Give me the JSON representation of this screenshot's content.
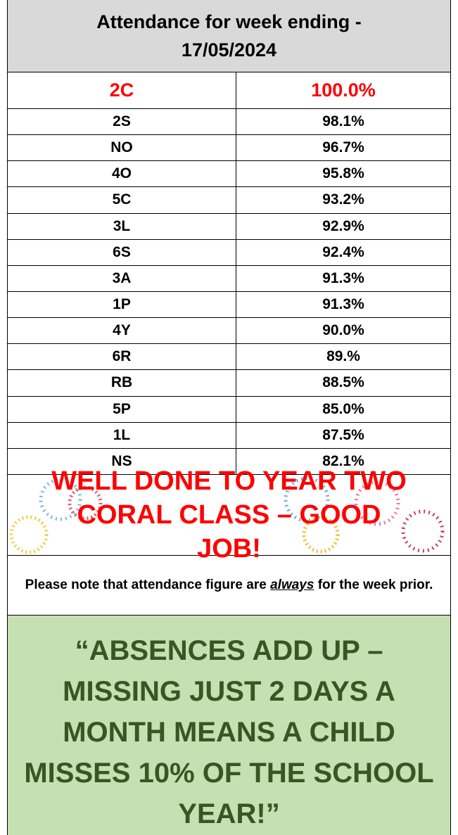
{
  "header": {
    "title": "Attendance for week ending - 17/05/2024"
  },
  "table": {
    "rows": [
      [
        "2C",
        "100.0%"
      ],
      [
        "2S",
        "98.1%"
      ],
      [
        "NO",
        "96.7%"
      ],
      [
        "4O",
        "95.8%"
      ],
      [
        "5C",
        "93.2%"
      ],
      [
        "3L",
        "92.9%"
      ],
      [
        "6S",
        "92.4%"
      ],
      [
        "3A",
        "91.3%"
      ],
      [
        "1P",
        "91.3%"
      ],
      [
        "4Y",
        "90.0%"
      ],
      [
        "6R",
        "89.%"
      ],
      [
        "RB",
        "88.5%"
      ],
      [
        "5P",
        "85.0%"
      ],
      [
        "1L",
        "87.5%"
      ],
      [
        "NS",
        "82.1%"
      ]
    ]
  },
  "banner": {
    "text": "WELL DONE TO YEAR TWO CORAL CLASS – GOOD JOB!"
  },
  "note": {
    "before": "Please note that attendance figure are ",
    "emphasis": "always",
    "after": " for the week prior."
  },
  "quote": {
    "text": "“ABSENCES ADD UP – MISSING JUST 2 DAYS A MONTH MEANS A CHILD MISSES 10% OF THE SCHOOL YEAR!”"
  }
}
